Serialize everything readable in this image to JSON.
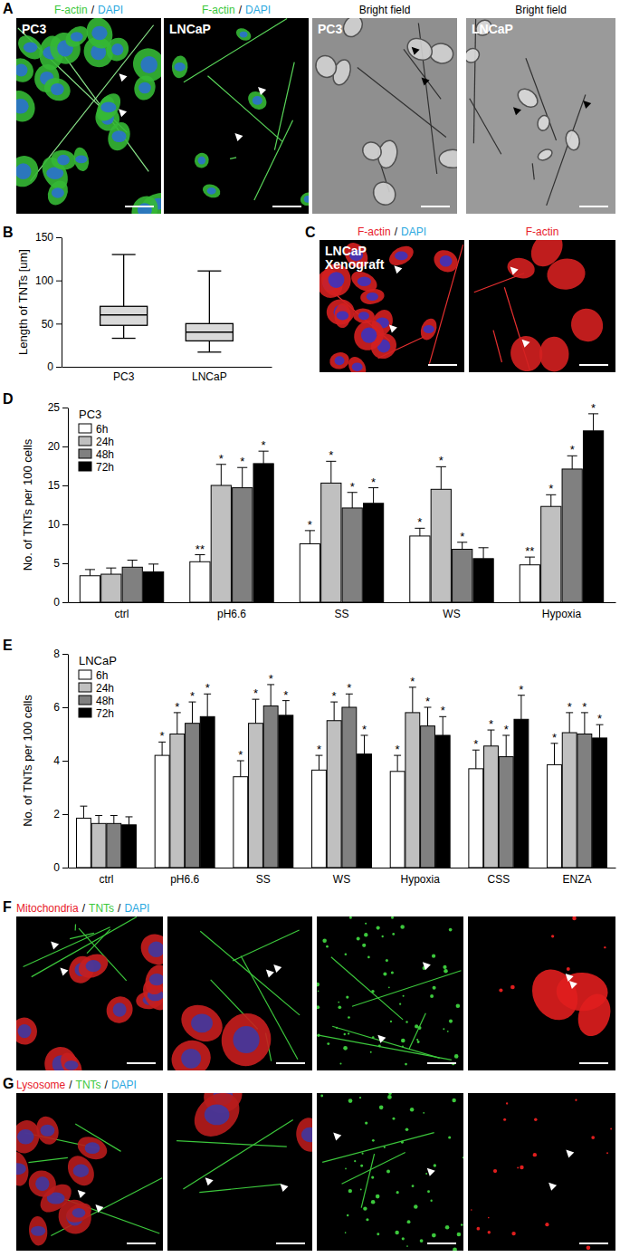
{
  "panel_letters": [
    "A",
    "B",
    "C",
    "D",
    "E",
    "F",
    "G"
  ],
  "image_panels": [
    {
      "images": [
        {
          "header": [
            {
              "text": "F-actin",
              "color": "#3cc83c"
            },
            {
              "text": "/",
              "color": "#000000"
            },
            {
              "text": "DAPI",
              "color": "#2aa8e0"
            }
          ],
          "inset": [
            "PC3"
          ]
        },
        {
          "header": [
            {
              "text": "F-actin",
              "color": "#3cc83c"
            },
            {
              "text": "/",
              "color": "#000000"
            },
            {
              "text": "DAPI",
              "color": "#2aa8e0"
            }
          ],
          "inset": [
            "LNCaP"
          ]
        },
        {
          "header": [
            {
              "text": "Bright field",
              "color": "#000000"
            }
          ],
          "inset": [
            "PC3"
          ]
        },
        {
          "header": [
            {
              "text": "Bright field",
              "color": "#000000"
            }
          ],
          "inset": [
            "LNCaP"
          ]
        }
      ]
    },
    {
      "images": [
        {
          "header": [
            {
              "text": "F-actin",
              "color": "#e8202a"
            },
            {
              "text": "/",
              "color": "#000000"
            },
            {
              "text": "DAPI",
              "color": "#2aa8e0"
            }
          ],
          "inset": [
            "LNCaP",
            "Xenograft"
          ]
        },
        {
          "header": [
            {
              "text": "F-actin",
              "color": "#e8202a"
            }
          ],
          "inset": []
        }
      ]
    },
    {
      "images": [
        {
          "header": [
            {
              "text": "Mitochondria",
              "color": "#e8202a"
            },
            {
              "text": "/",
              "color": "#000000"
            },
            {
              "text": "TNTs",
              "color": "#3cc83c"
            },
            {
              "text": "/",
              "color": "#000000"
            },
            {
              "text": "DAPI",
              "color": "#2aa8e0"
            }
          ],
          "inset": []
        },
        {
          "header": [],
          "inset": []
        },
        {
          "header": [],
          "inset": []
        },
        {
          "header": [],
          "inset": []
        }
      ]
    },
    {
      "images": [
        {
          "header": [
            {
              "text": "Lysosome",
              "color": "#e8202a"
            },
            {
              "text": "/",
              "color": "#000000"
            },
            {
              "text": "TNTs",
              "color": "#3cc83c"
            },
            {
              "text": "/",
              "color": "#000000"
            },
            {
              "text": "DAPI",
              "color": "#2aa8e0"
            }
          ],
          "inset": []
        },
        {
          "header": [],
          "inset": []
        },
        {
          "header": [],
          "inset": []
        },
        {
          "header": [],
          "inset": []
        }
      ]
    }
  ],
  "chart_data": [
    {
      "type": "box",
      "ylabel": "Length of TNTs [um]",
      "categories": [
        "PC3",
        "LNCaP"
      ],
      "ylim": [
        0,
        150
      ],
      "yticks": [
        0,
        50,
        100,
        150
      ],
      "color": "#d9d9d9",
      "boxes": [
        {
          "min": 33,
          "q1": 48,
          "median": 60,
          "q3": 70,
          "max": 130
        },
        {
          "min": 17,
          "q1": 30,
          "median": 40,
          "q3": 50,
          "max": 111
        }
      ]
    },
    {
      "type": "bar",
      "title": "PC3",
      "ylabel": "No. of TNTs per 100 cells",
      "categories": [
        "ctrl",
        "pH6.6",
        "SS",
        "WS",
        "Hypoxia"
      ],
      "ylim": [
        0,
        25
      ],
      "yticks": [
        0,
        5,
        10,
        15,
        20,
        25
      ],
      "legend": "top-left",
      "series": [
        {
          "name": "6h",
          "color": "#ffffff",
          "values": [
            3.4,
            5.2,
            7.5,
            8.5,
            4.8
          ],
          "errors": [
            0.8,
            0.9,
            1.7,
            1.0,
            1.0
          ],
          "annotations": [
            null,
            "**",
            "*",
            "*",
            "**"
          ]
        },
        {
          "name": "24h",
          "color": "#c0c0c0",
          "values": [
            3.6,
            15.0,
            15.3,
            14.5,
            12.3
          ],
          "errors": [
            0.8,
            2.7,
            2.8,
            2.9,
            1.5
          ],
          "annotations": [
            null,
            "*",
            "*",
            "*",
            "*"
          ]
        },
        {
          "name": "48h",
          "color": "#808080",
          "values": [
            4.5,
            14.7,
            12.1,
            6.8,
            17.1
          ],
          "errors": [
            0.9,
            2.6,
            2.0,
            0.9,
            1.7
          ],
          "annotations": [
            null,
            "*",
            "*",
            "*",
            "*"
          ]
        },
        {
          "name": "72h",
          "color": "#000000",
          "values": [
            3.9,
            17.8,
            12.7,
            5.6,
            22.0
          ],
          "errors": [
            1.0,
            1.6,
            2.0,
            1.4,
            2.2
          ],
          "annotations": [
            null,
            "*",
            "*",
            null,
            "*"
          ]
        }
      ]
    },
    {
      "type": "bar",
      "title": "LNCaP",
      "ylabel": "No. of TNTs per 100 cells",
      "categories": [
        "ctrl",
        "pH6.6",
        "SS",
        "WS",
        "Hypoxia",
        "CSS",
        "ENZA"
      ],
      "ylim": [
        0,
        8
      ],
      "yticks": [
        0,
        2,
        4,
        6,
        8
      ],
      "legend": "top-left",
      "series": [
        {
          "name": "6h",
          "color": "#ffffff",
          "values": [
            1.85,
            4.2,
            3.4,
            3.65,
            3.6,
            3.7,
            3.85
          ],
          "errors": [
            0.45,
            0.5,
            0.6,
            0.55,
            0.6,
            0.7,
            0.8
          ],
          "annotations": [
            null,
            "*",
            "*",
            "*",
            "*",
            "*",
            "*"
          ]
        },
        {
          "name": "24h",
          "color": "#c0c0c0",
          "values": [
            1.65,
            5.0,
            5.4,
            5.5,
            5.8,
            4.55,
            5.05
          ],
          "errors": [
            0.3,
            0.8,
            0.9,
            0.7,
            0.95,
            0.6,
            0.75
          ],
          "annotations": [
            null,
            "*",
            "*",
            "*",
            "*",
            "*",
            "*"
          ]
        },
        {
          "name": "48h",
          "color": "#808080",
          "values": [
            1.65,
            5.4,
            6.05,
            6.0,
            5.3,
            4.15,
            5.0
          ],
          "errors": [
            0.3,
            0.8,
            0.8,
            0.5,
            0.7,
            0.8,
            0.8
          ],
          "annotations": [
            null,
            "*",
            "*",
            "*",
            "*",
            "*",
            "*"
          ]
        },
        {
          "name": "72h",
          "color": "#000000",
          "values": [
            1.6,
            5.65,
            5.7,
            4.25,
            4.95,
            5.55,
            4.85
          ],
          "errors": [
            0.3,
            0.85,
            0.55,
            0.7,
            0.7,
            0.9,
            0.5
          ],
          "annotations": [
            null,
            "*",
            "*",
            "*",
            "*",
            "*",
            "*"
          ]
        }
      ]
    }
  ]
}
